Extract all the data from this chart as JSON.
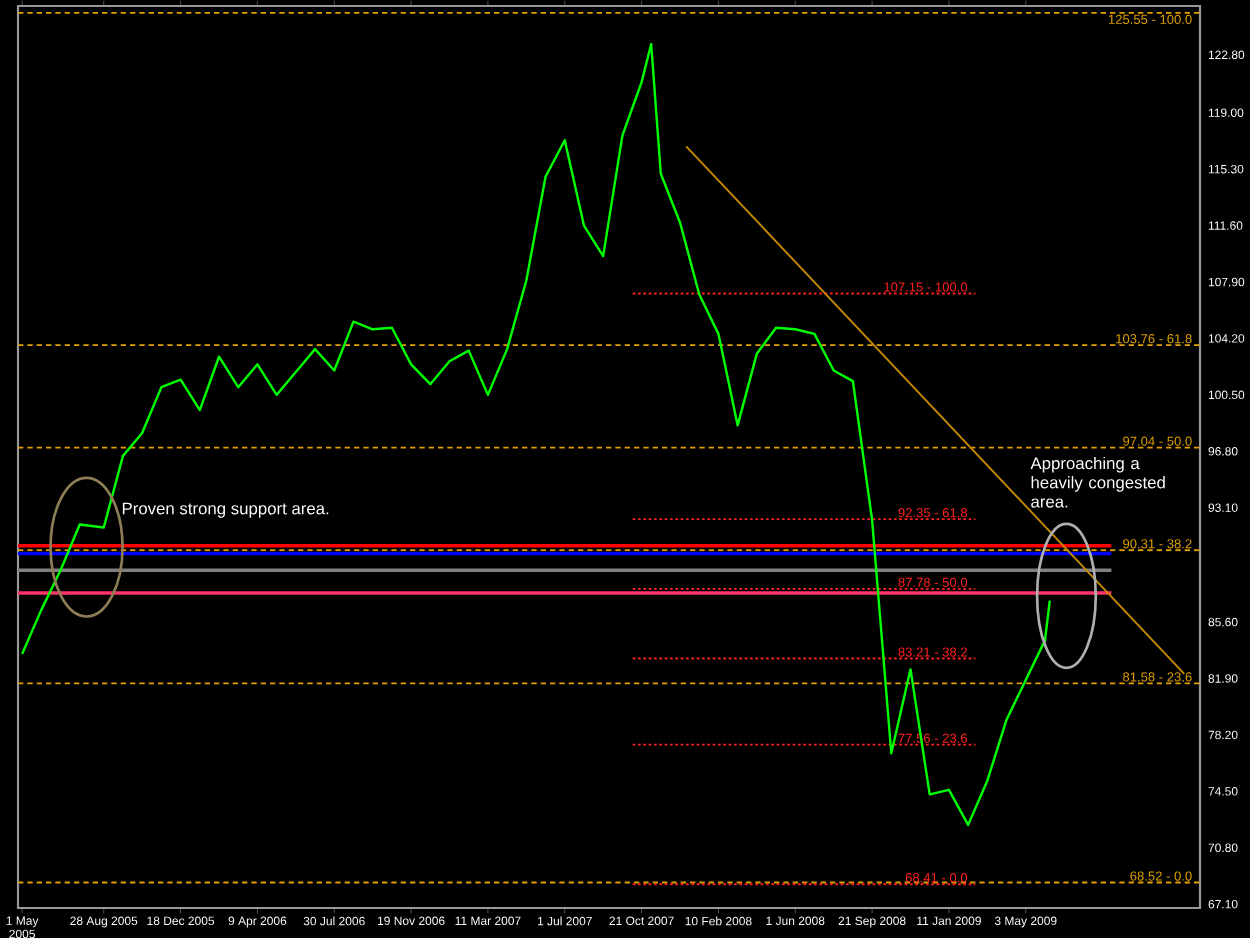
{
  "chart_data": {
    "type": "line",
    "xlim": [
      "2005-04-25",
      "2010-01-12"
    ],
    "ylim": [
      66.85,
      126.0
    ],
    "xticks": [
      {
        "value": "2005-05-01",
        "label": "1 May 2005"
      },
      {
        "value": "2005-08-28",
        "label": "28 Aug 2005"
      },
      {
        "value": "2005-12-18",
        "label": "18 Dec 2005"
      },
      {
        "value": "2006-04-09",
        "label": "9 Apr 2006"
      },
      {
        "value": "2006-07-30",
        "label": "30 Jul 2006"
      },
      {
        "value": "2006-11-19",
        "label": "19 Nov 2006"
      },
      {
        "value": "2007-03-11",
        "label": "11 Mar 2007"
      },
      {
        "value": "2007-07-01",
        "label": "1 Jul 2007"
      },
      {
        "value": "2007-10-21",
        "label": "21 Oct 2007"
      },
      {
        "value": "2008-02-10",
        "label": "10 Feb 2008"
      },
      {
        "value": "2008-06-01",
        "label": "1 Jun 2008"
      },
      {
        "value": "2008-09-21",
        "label": "21 Sep 2008"
      },
      {
        "value": "2009-01-11",
        "label": "11 Jan 2009"
      },
      {
        "value": "2009-05-03",
        "label": "3 May 2009"
      }
    ],
    "yticks": [
      {
        "value": 67.1,
        "label": "67.10"
      },
      {
        "value": 70.8,
        "label": "70.80"
      },
      {
        "value": 74.5,
        "label": "74.50"
      },
      {
        "value": 78.2,
        "label": "78.20"
      },
      {
        "value": 81.9,
        "label": "81.90"
      },
      {
        "value": 85.6,
        "label": "85.60"
      },
      {
        "value": 93.1,
        "label": "93.10"
      },
      {
        "value": 96.8,
        "label": "96.80"
      },
      {
        "value": 100.5,
        "label": "100.50"
      },
      {
        "value": 104.2,
        "label": "104.20"
      },
      {
        "value": 107.9,
        "label": "107.90"
      },
      {
        "value": 111.6,
        "label": "111.60"
      },
      {
        "value": 115.3,
        "label": "115.30"
      },
      {
        "value": 119.0,
        "label": "119.00"
      },
      {
        "value": 122.8,
        "label": "122.80"
      }
    ],
    "series": [
      {
        "color": "#00ff00",
        "x": [
          "2005-05-01",
          "2005-05-29",
          "2005-06-26",
          "2005-07-24",
          "2005-08-28",
          "2005-09-25",
          "2005-10-23",
          "2005-11-20",
          "2005-12-18",
          "2006-01-15",
          "2006-02-12",
          "2006-03-12",
          "2006-04-09",
          "2006-05-07",
          "2006-06-04",
          "2006-07-02",
          "2006-07-30",
          "2006-08-27",
          "2006-09-24",
          "2006-10-22",
          "2006-11-19",
          "2006-12-17",
          "2007-01-14",
          "2007-02-11",
          "2007-03-11",
          "2007-04-08",
          "2007-05-06",
          "2007-06-03",
          "2007-07-01",
          "2007-07-29",
          "2007-08-26",
          "2007-09-23",
          "2007-10-21",
          "2007-11-04",
          "2007-11-18",
          "2007-12-16",
          "2008-01-13",
          "2008-02-10",
          "2008-03-09",
          "2008-04-06",
          "2008-05-04",
          "2008-06-01",
          "2008-06-29",
          "2008-07-27",
          "2008-08-24",
          "2008-09-21",
          "2008-10-19",
          "2008-11-16",
          "2008-12-14",
          "2009-01-11",
          "2009-02-08",
          "2009-03-08",
          "2009-04-05",
          "2009-05-03",
          "2009-05-31",
          "2009-06-07"
        ],
        "values": [
          83.5,
          86.4,
          89.0,
          92.0,
          91.8,
          96.5,
          98.0,
          101.0,
          101.5,
          99.5,
          103.0,
          101.0,
          102.5,
          100.5,
          102.0,
          103.5,
          102.1,
          105.3,
          104.8,
          104.9,
          102.5,
          101.2,
          102.7,
          103.4,
          100.5,
          103.5,
          108.0,
          114.8,
          117.2,
          111.6,
          109.6,
          117.5,
          121.0,
          123.5,
          115.0,
          111.8,
          107.1,
          104.5,
          98.5,
          103.2,
          104.9,
          104.8,
          104.5,
          102.1,
          101.4,
          92.3,
          77.0,
          82.5,
          74.3,
          74.6,
          72.3,
          75.2,
          79.2,
          81.8,
          84.4,
          87.0
        ]
      },
      {
        "type": "line",
        "color": "#c88a00",
        "x": [
          "2007-12-25",
          "2009-12-20"
        ],
        "values": [
          116.8,
          82.2
        ]
      }
    ],
    "ref_lines": [
      {
        "axis": "y",
        "value": 125.55,
        "label": "125.55 - 100.0",
        "color": "#e0a000",
        "line_style": "dashed"
      },
      {
        "axis": "y",
        "value": 103.76,
        "label": "103.76 - 61.8",
        "color": "#e0a000",
        "line_style": "dashed"
      },
      {
        "axis": "y",
        "value": 97.04,
        "label": "97.04 - 50.0",
        "color": "#e0a000",
        "line_style": "dashed"
      },
      {
        "axis": "y",
        "value": 90.31,
        "label": "90.31 - 38.2",
        "color": "#e0a000",
        "line_style": "dashed"
      },
      {
        "axis": "y",
        "value": 81.58,
        "label": "81.58 - 23.6",
        "color": "#e0a000",
        "line_style": "dashed"
      },
      {
        "axis": "y",
        "value": 68.52,
        "label": "68.52 - 0.0",
        "color": "#e0a000",
        "line_style": "dashed"
      },
      {
        "axis": "y",
        "value": 107.15,
        "label": "107.15 - 100.0",
        "color": "#ff2020",
        "line_style": "dotted"
      },
      {
        "axis": "y",
        "value": 92.35,
        "label": "92.35 - 61.8",
        "color": "#ff2020",
        "line_style": "dotted"
      },
      {
        "axis": "y",
        "value": 87.78,
        "label": "87.78 - 50.0",
        "color": "#ff2020",
        "line_style": "dotted"
      },
      {
        "axis": "y",
        "value": 83.21,
        "label": "83.21 - 38.2",
        "color": "#ff2020",
        "line_style": "dotted"
      },
      {
        "axis": "y",
        "value": 77.56,
        "label": "77.56 - 23.6",
        "color": "#ff2020",
        "line_style": "dotted"
      },
      {
        "axis": "y",
        "value": 68.41,
        "label": "68.41 - 0.0",
        "color": "#ff2020",
        "line_style": "dotted"
      },
      {
        "axis": "y",
        "value": 90.6,
        "color": "#ff0000",
        "line_style": "solid"
      },
      {
        "axis": "y",
        "value": 90.1,
        "color": "#0000ff",
        "line_style": "solid"
      },
      {
        "axis": "y",
        "value": 89.0,
        "color": "#808080",
        "line_style": "solid"
      },
      {
        "axis": "y",
        "value": 87.5,
        "color": "#ff3366",
        "line_style": "solid"
      }
    ],
    "annotations": [
      "Proven strong support area.",
      "Approaching a heavily congested area."
    ]
  }
}
